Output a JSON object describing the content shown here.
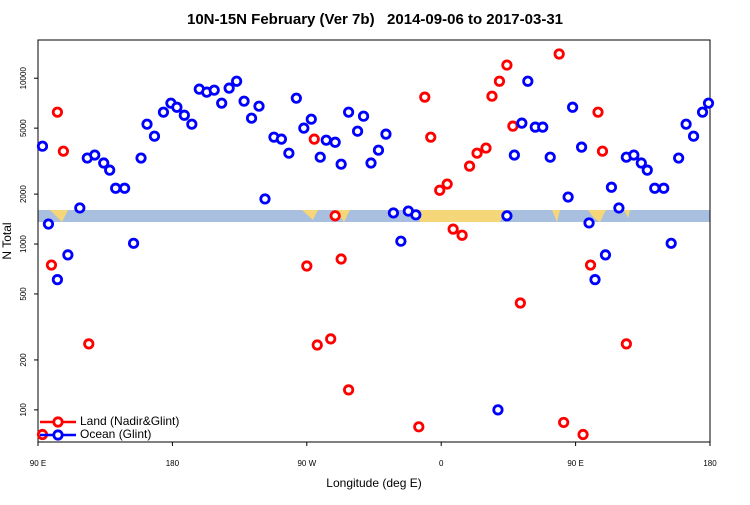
{
  "chart_data": {
    "type": "scatter",
    "title": "10N-15N February (Ver 7b)   2014-09-06 to 2017-03-31",
    "x_label": "Longitude (deg E)",
    "y_label": "N Total",
    "xlim": [
      90,
      540
    ],
    "ylim": [
      64,
      17000
    ],
    "ylog": true,
    "legend": "bottom-left",
    "xticks": [
      {
        "value": 90,
        "label": "90 E"
      },
      {
        "value": 180,
        "label": "180"
      },
      {
        "value": 270,
        "label": "90 W"
      },
      {
        "value": 360,
        "label": "0"
      },
      {
        "value": 450,
        "label": "90 E"
      },
      {
        "value": 540,
        "label": "180"
      }
    ],
    "yticks": [
      100,
      200,
      500,
      1000,
      2000,
      5000,
      10000
    ],
    "series": [
      {
        "name": "Land (Nadir&Glint)",
        "color": "#ff0000",
        "x": [
          93,
          99,
          103,
          107,
          124,
          270,
          275,
          277,
          286,
          289,
          293,
          298,
          345,
          349,
          353,
          359,
          364,
          368,
          374,
          379,
          384,
          390,
          394,
          399,
          404,
          408,
          413,
          439,
          442,
          455,
          460,
          465,
          468,
          484
        ],
        "values": [
          71,
          747,
          6240,
          3630,
          250,
          737,
          4290,
          246,
          268,
          1480,
          812,
          132,
          79,
          7690,
          4410,
          2110,
          2300,
          1230,
          1130,
          2950,
          3530,
          3790,
          7790,
          9590,
          12000,
          5140,
          441,
          14000,
          84,
          71,
          747,
          6240,
          3630,
          250
        ]
      },
      {
        "name": "Ocean (Glint)",
        "color": "#0000ff",
        "x": [
          93,
          97,
          103,
          110,
          118,
          123,
          128,
          134,
          138,
          142,
          148,
          154,
          159,
          163,
          168,
          174,
          179,
          183,
          188,
          193,
          198,
          203,
          208,
          213,
          218,
          223,
          228,
          233,
          238,
          242,
          248,
          253,
          258,
          263,
          268,
          273,
          279,
          283,
          289,
          293,
          298,
          304,
          308,
          313,
          318,
          323,
          328,
          333,
          338,
          343,
          398,
          404,
          409,
          414,
          418,
          423,
          428,
          433,
          445,
          448,
          454,
          459,
          463,
          470,
          474,
          479,
          484,
          489,
          494,
          498,
          503,
          509,
          514,
          519,
          524,
          529,
          535,
          539
        ],
        "values": [
          3890,
          1320,
          610,
          860,
          1650,
          3300,
          3440,
          3080,
          2790,
          2170,
          2170,
          1010,
          3300,
          5280,
          4470,
          6240,
          7070,
          6680,
          5980,
          5280,
          8590,
          8240,
          8470,
          7070,
          8710,
          9590,
          7270,
          5740,
          6780,
          1870,
          4410,
          4290,
          3530,
          7580,
          5000,
          5660,
          3340,
          4230,
          4110,
          3030,
          6240,
          4790,
          5900,
          3080,
          3680,
          4600,
          1540,
          1040,
          1580,
          1500,
          100,
          1480,
          3440,
          5360,
          9590,
          5070,
          5070,
          3340,
          1920,
          6680,
          3840,
          1340,
          610,
          860,
          2200,
          1650,
          3340,
          3440,
          3080,
          2790,
          2170,
          2170,
          1010,
          3300,
          5280,
          4470,
          6240,
          7070
        ]
      }
    ]
  }
}
